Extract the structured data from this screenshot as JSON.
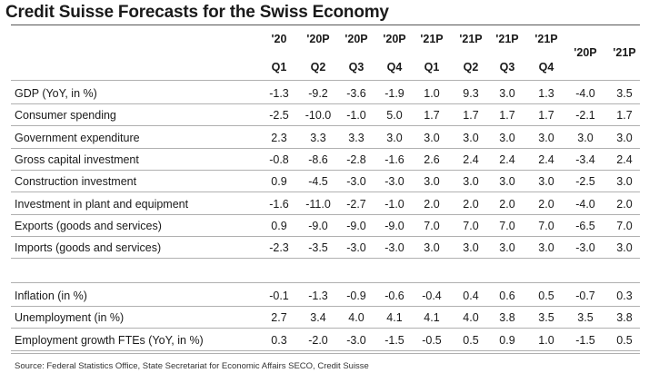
{
  "title": "Credit Suisse Forecasts for the Swiss Economy",
  "columns": [
    {
      "year": "'20",
      "quarter": "Q1"
    },
    {
      "year": "'20P",
      "quarter": "Q2"
    },
    {
      "year": "'20P",
      "quarter": "Q3"
    },
    {
      "year": "'20P",
      "quarter": "Q4"
    },
    {
      "year": "'21P",
      "quarter": "Q1"
    },
    {
      "year": "'21P",
      "quarter": "Q2"
    },
    {
      "year": "'21P",
      "quarter": "Q3"
    },
    {
      "year": "'21P",
      "quarter": "Q4"
    },
    {
      "year": "'20P",
      "quarter": ""
    },
    {
      "year": "'21P",
      "quarter": ""
    }
  ],
  "rows": [
    {
      "label": "GDP (YoY, in %)",
      "values": [
        "-1.3",
        "-9.2",
        "-3.6",
        "-1.9",
        "1.0",
        "9.3",
        "3.0",
        "1.3",
        "-4.0",
        "3.5"
      ]
    },
    {
      "label": "Consumer spending",
      "values": [
        "-2.5",
        "-10.0",
        "-1.0",
        "5.0",
        "1.7",
        "1.7",
        "1.7",
        "1.7",
        "-2.1",
        "1.7"
      ]
    },
    {
      "label": "Government expenditure",
      "values": [
        "2.3",
        "3.3",
        "3.3",
        "3.0",
        "3.0",
        "3.0",
        "3.0",
        "3.0",
        "3.0",
        "3.0"
      ]
    },
    {
      "label": "Gross capital investment",
      "values": [
        "-0.8",
        "-8.6",
        "-2.8",
        "-1.6",
        "2.6",
        "2.4",
        "2.4",
        "2.4",
        "-3.4",
        "2.4"
      ]
    },
    {
      "label": "Construction investment",
      "values": [
        "0.9",
        "-4.5",
        "-3.0",
        "-3.0",
        "3.0",
        "3.0",
        "3.0",
        "3.0",
        "-2.5",
        "3.0"
      ]
    },
    {
      "label": "Investment in plant and equipment",
      "values": [
        "-1.6",
        "-11.0",
        "-2.7",
        "-1.0",
        "2.0",
        "2.0",
        "2.0",
        "2.0",
        "-4.0",
        "2.0"
      ]
    },
    {
      "label": "Exports (goods and services)",
      "values": [
        "0.9",
        "-9.0",
        "-9.0",
        "-9.0",
        "7.0",
        "7.0",
        "7.0",
        "7.0",
        "-6.5",
        "7.0"
      ]
    },
    {
      "label": "Imports (goods and services)",
      "values": [
        "-2.3",
        "-3.5",
        "-3.0",
        "-3.0",
        "3.0",
        "3.0",
        "3.0",
        "3.0",
        "-3.0",
        "3.0"
      ]
    }
  ],
  "rows2": [
    {
      "label": "Inflation (in %)",
      "values": [
        "-0.1",
        "-1.3",
        "-0.9",
        "-0.6",
        "-0.4",
        "0.4",
        "0.6",
        "0.5",
        "-0.7",
        "0.3"
      ]
    },
    {
      "label": "Unemployment (in %)",
      "values": [
        "2.7",
        "3.4",
        "4.0",
        "4.1",
        "4.1",
        "4.0",
        "3.8",
        "3.5",
        "3.5",
        "3.8"
      ]
    },
    {
      "label": "Employment growth FTEs (YoY, in %)",
      "values": [
        "0.3",
        "-2.0",
        "-3.0",
        "-1.5",
        "-0.5",
        "0.5",
        "0.9",
        "1.0",
        "-1.5",
        "0.5"
      ]
    }
  ],
  "source": "Source: Federal Statistics Office, State Secretariat for Economic Affairs SECO, Credit Suisse"
}
